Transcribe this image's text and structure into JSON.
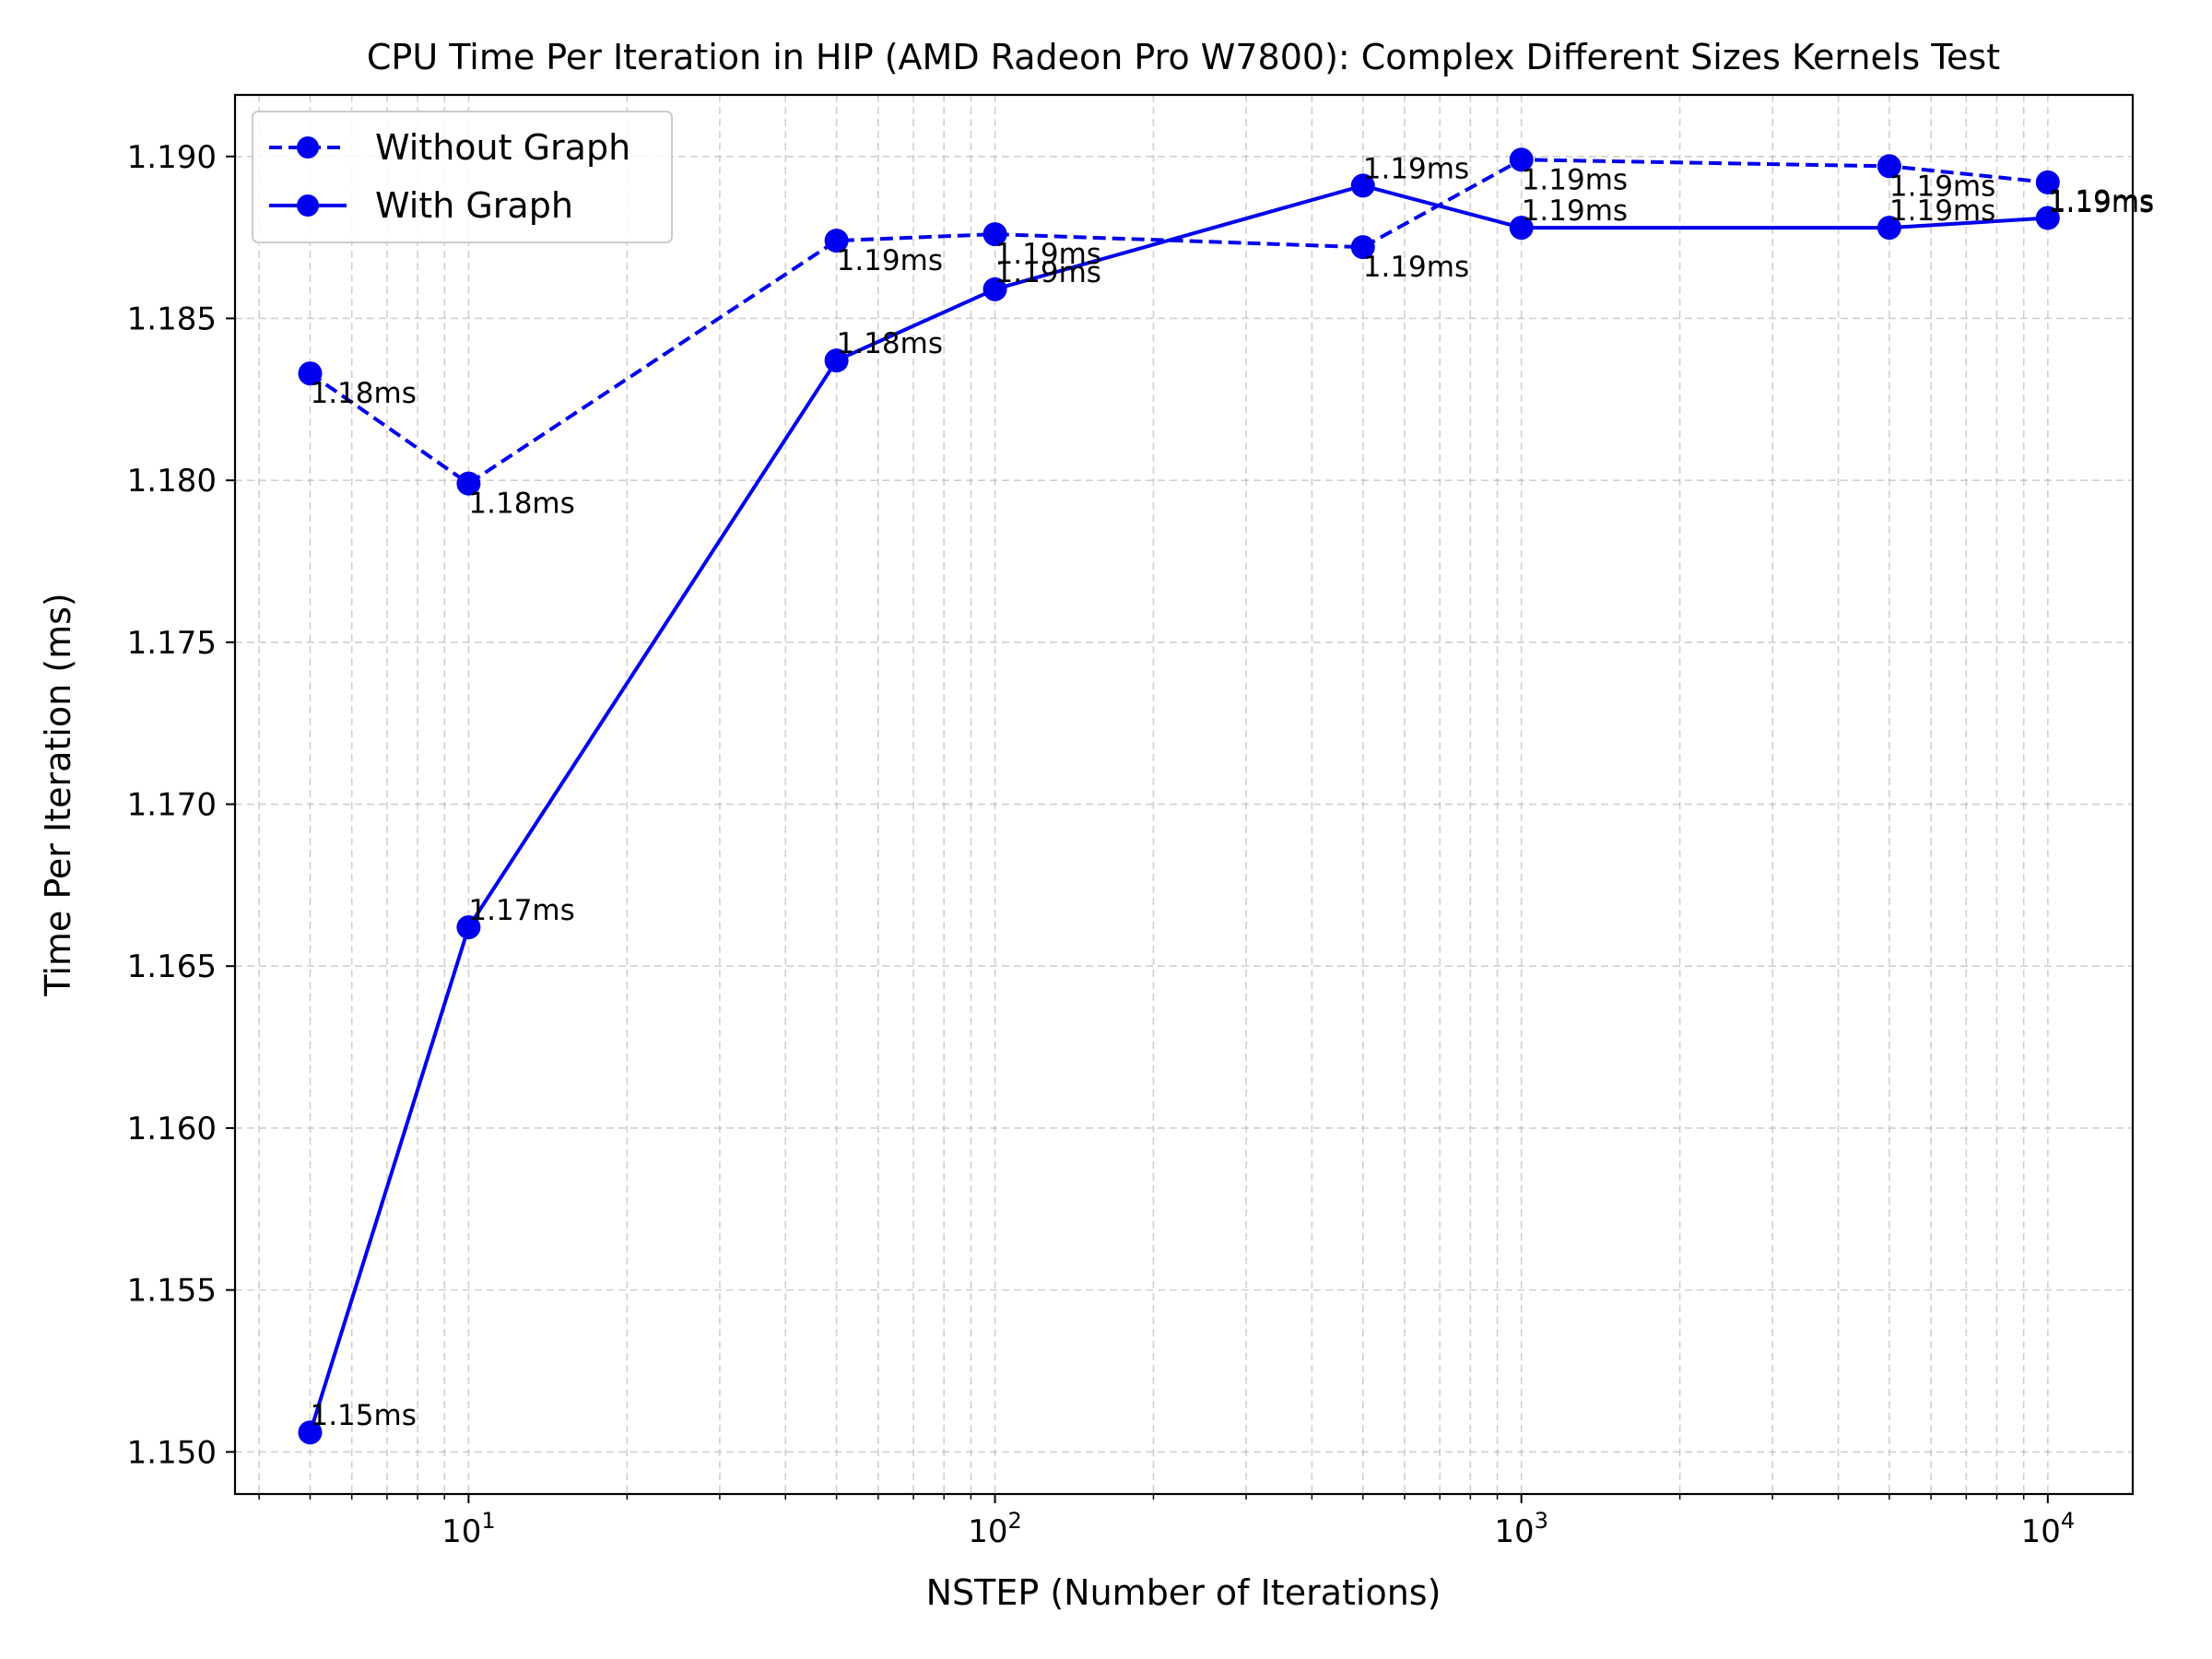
{
  "chart_data": {
    "type": "line",
    "title": "CPU Time Per Iteration in HIP (AMD Radeon Pro W7800): Complex Different Sizes Kernels Test",
    "xlabel": "NSTEP (Number of Iterations)",
    "ylabel": "Time Per Iteration (ms)",
    "xscale": "log",
    "xlim": [
      3.6,
      14500
    ],
    "ylim": [
      1.1487,
      1.1919
    ],
    "x": [
      5,
      10,
      50,
      100,
      500,
      1000,
      5000,
      10000
    ],
    "x_ticks": [
      10,
      100,
      1000,
      10000
    ],
    "x_tick_labels": [
      {
        "base": "10",
        "exp": "1"
      },
      {
        "base": "10",
        "exp": "2"
      },
      {
        "base": "10",
        "exp": "3"
      },
      {
        "base": "10",
        "exp": "4"
      }
    ],
    "y_ticks": [
      1.15,
      1.155,
      1.16,
      1.165,
      1.17,
      1.175,
      1.18,
      1.185,
      1.19
    ],
    "y_tick_labels": [
      "1.150",
      "1.155",
      "1.160",
      "1.165",
      "1.170",
      "1.175",
      "1.180",
      "1.185",
      "1.190"
    ],
    "grid": true,
    "legend_position": "top-left",
    "series": [
      {
        "name": "Without Graph",
        "linestyle": "dashed",
        "color": "#0000ee",
        "values": [
          1.1833,
          1.1799,
          1.1874,
          1.1876,
          1.1872,
          1.1899,
          1.1897,
          1.1892
        ],
        "labels": [
          "1.18ms",
          "1.18ms",
          "1.19ms",
          "1.19ms",
          "1.19ms",
          "1.19ms",
          "1.19ms",
          "1.19ms"
        ]
      },
      {
        "name": "With Graph",
        "linestyle": "solid",
        "color": "#0000ee",
        "values": [
          1.1506,
          1.1662,
          1.1837,
          1.1859,
          1.1891,
          1.1878,
          1.1878,
          1.1881
        ],
        "labels": [
          "1.15ms",
          "1.17ms",
          "1.18ms",
          "1.19ms",
          "1.19ms",
          "1.19ms",
          "1.19ms",
          "1.19ms"
        ]
      }
    ]
  }
}
